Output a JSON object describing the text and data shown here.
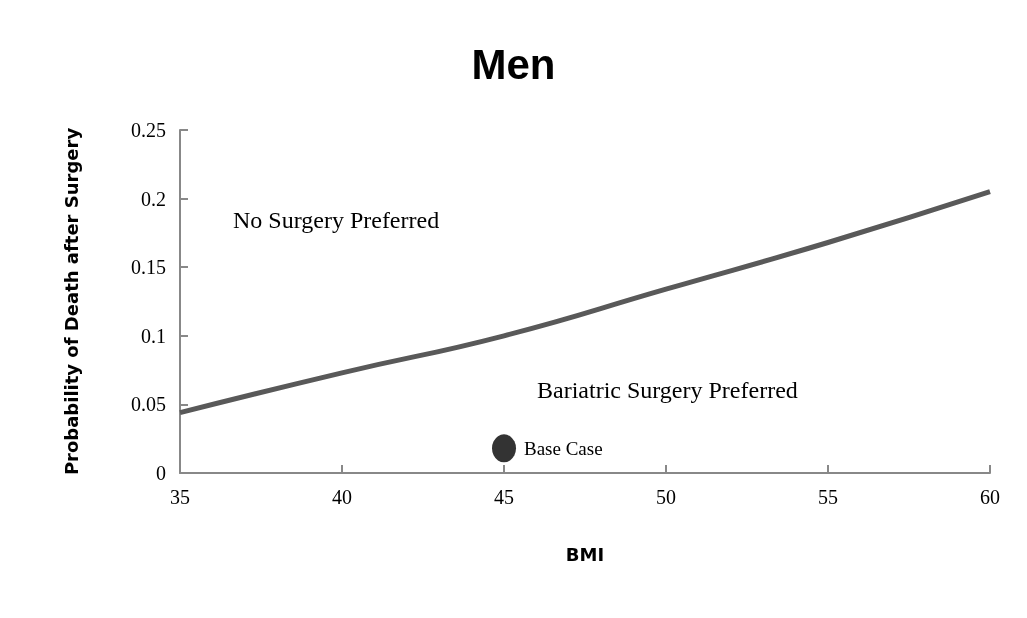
{
  "chart_data": {
    "type": "line",
    "title": "Men",
    "xlabel": "BMI",
    "ylabel": "Probability of Death after Surgery",
    "series": [
      {
        "color": "#595959",
        "marker": "none",
        "x": [
          35,
          40,
          45,
          50,
          55,
          60
        ],
        "values": [
          0.044,
          0.073,
          0.1,
          0.134,
          0.168,
          0.205
        ]
      },
      {
        "type": "scatter",
        "marker": "circle",
        "color": "#000000",
        "x": [
          45
        ],
        "values": [
          0.018
        ]
      }
    ],
    "xlim": [
      35,
      60
    ],
    "xticks": [
      35,
      40,
      45,
      50,
      55,
      60
    ],
    "ylim": [
      0,
      0.25
    ],
    "yticks": [
      0,
      0.05,
      0.1,
      0.15,
      0.2,
      0.25
    ],
    "grid": false,
    "annotations": [
      "No Surgery Preferred",
      "Bariatric Surgery Preferred",
      {
        "text": "Base Case",
        "x": 45,
        "y": 0.018
      }
    ]
  }
}
